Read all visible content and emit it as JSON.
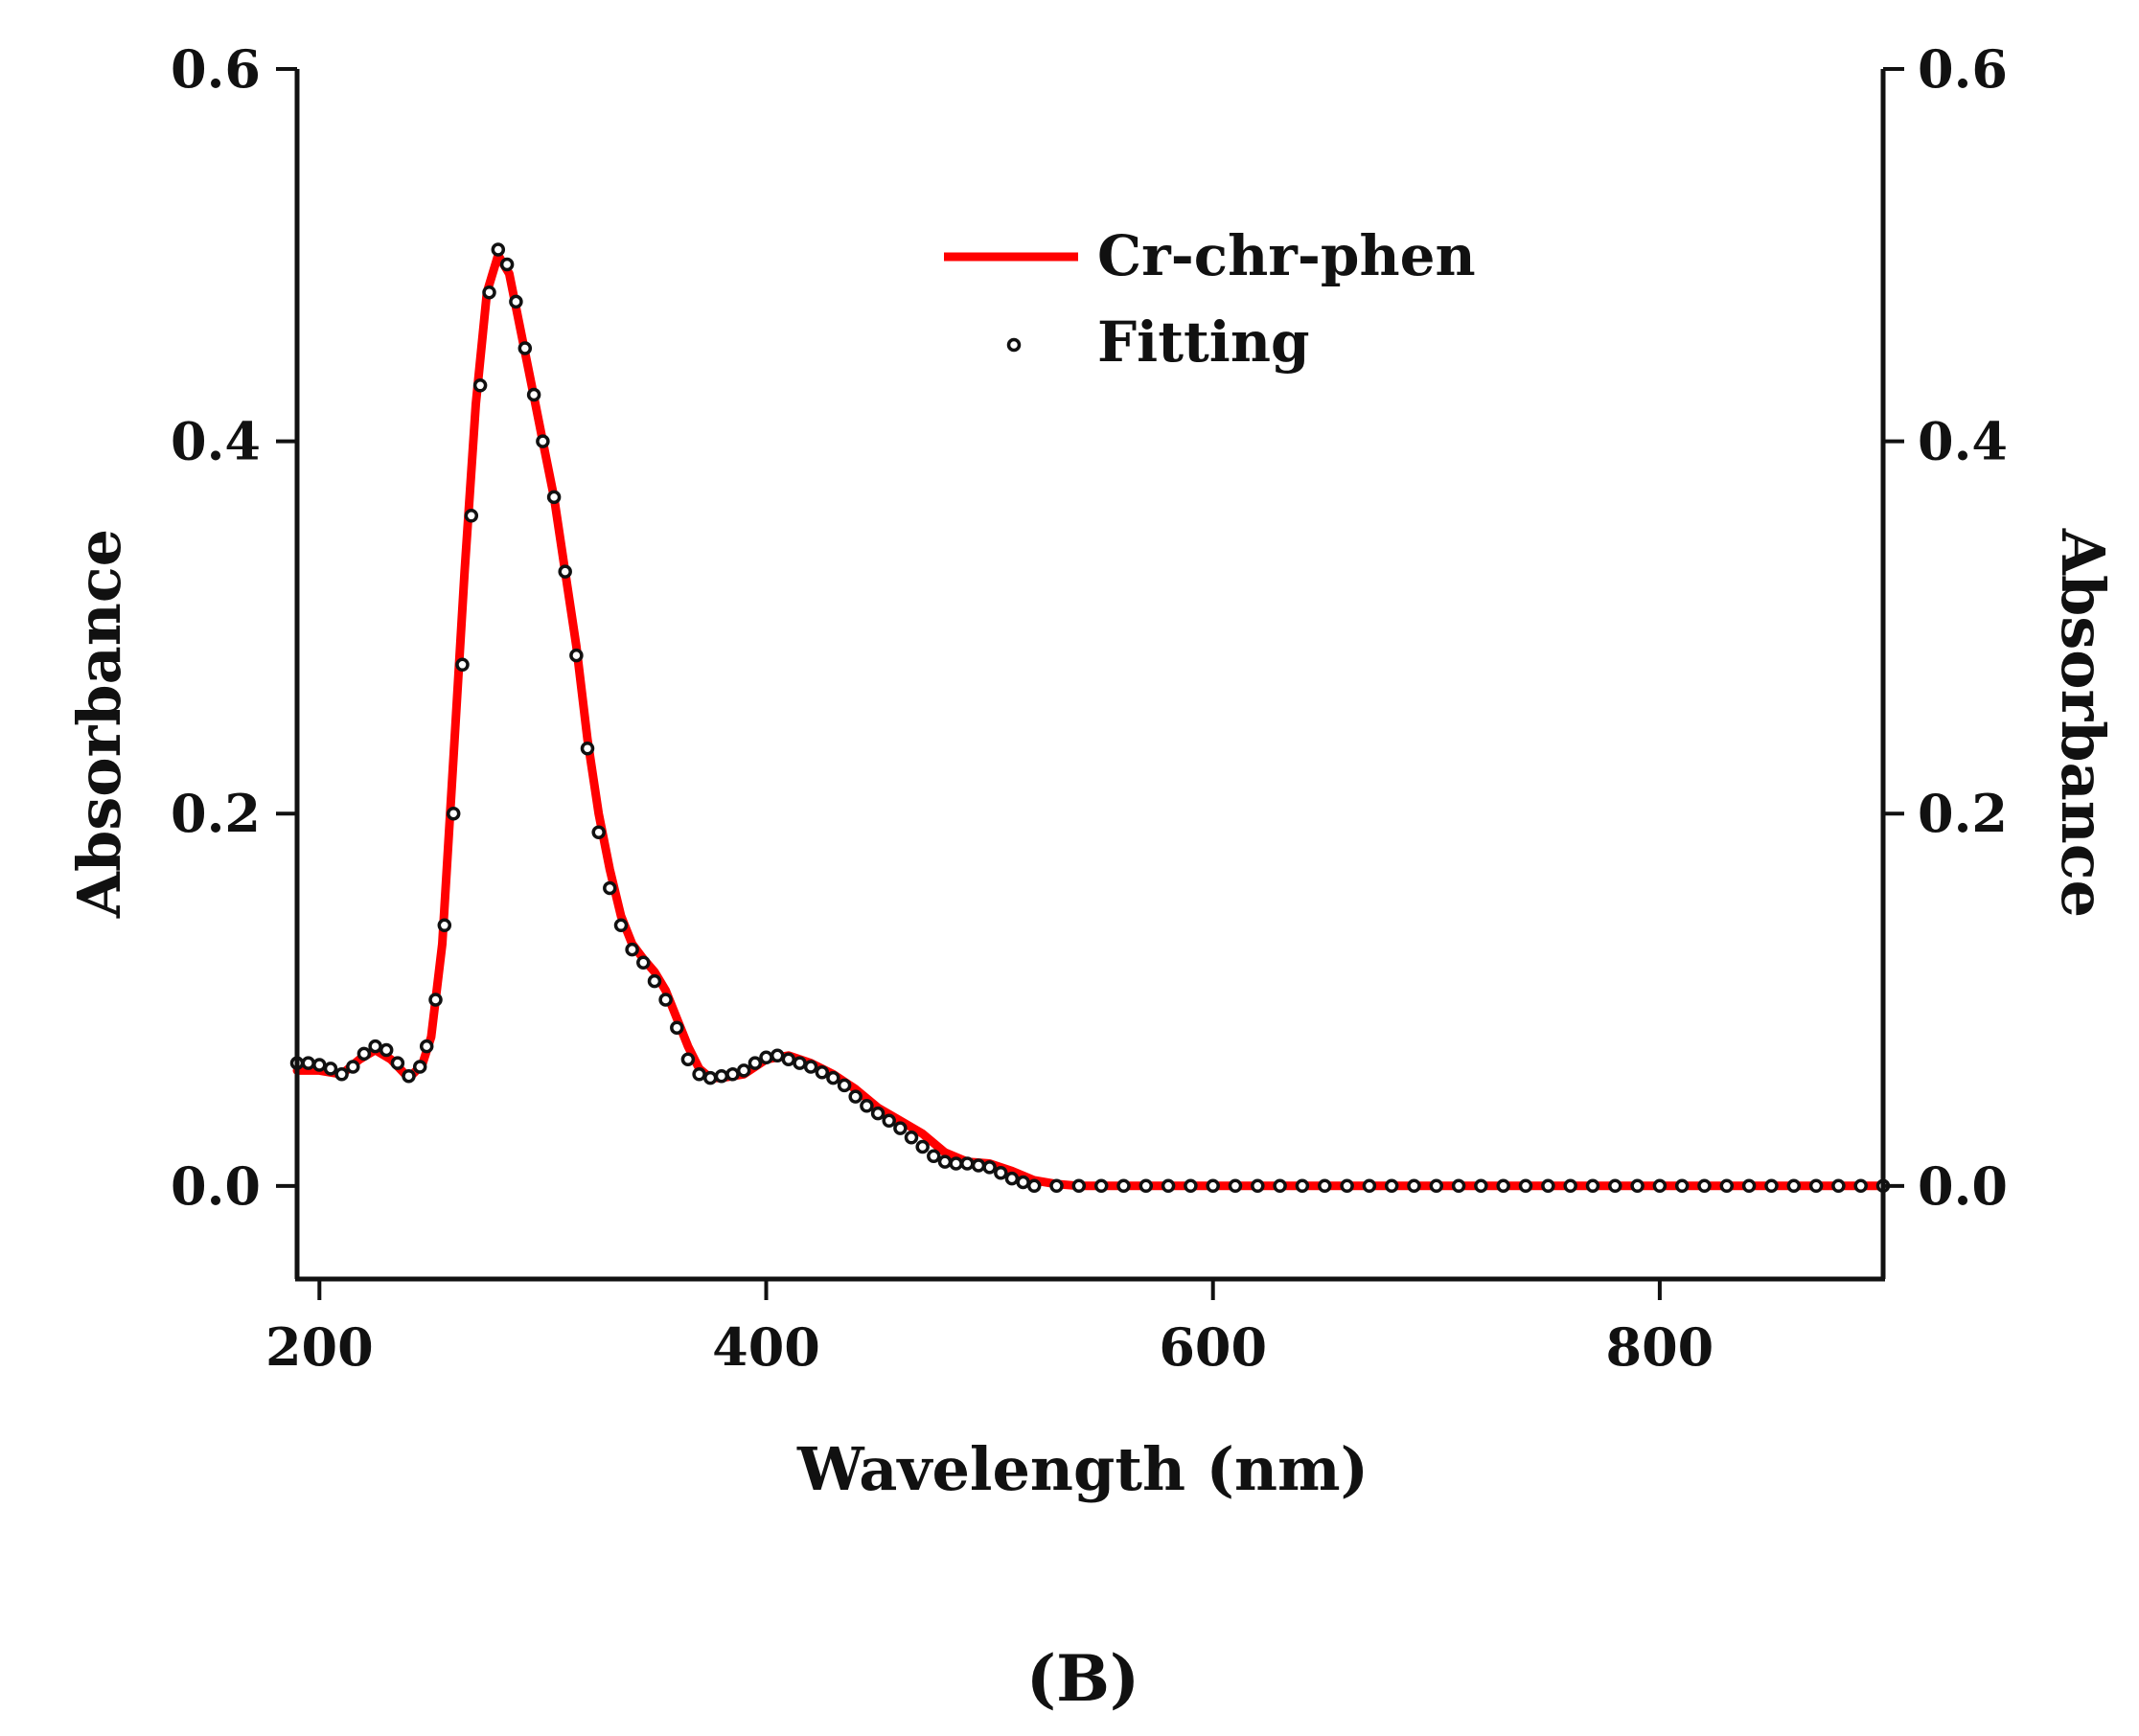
{
  "chart_data": {
    "type": "line",
    "title": "",
    "panel_label": "(B)",
    "xlabel": "Wavelength (nm)",
    "ylabel": "Absorbance",
    "ylabel_right": "Absorbance",
    "xlim": [
      190,
      900
    ],
    "ylim": [
      -0.05,
      0.6
    ],
    "x_ticks": [
      200,
      400,
      600,
      800
    ],
    "x_tick_labels": [
      "200",
      "400",
      "600",
      "800"
    ],
    "y_ticks": [
      0.0,
      0.2,
      0.4,
      0.6
    ],
    "y_tick_labels": [
      "0.0",
      "0.2",
      "0.4",
      "0.6"
    ],
    "grid": false,
    "legend_position": "top-center",
    "colors": {
      "line": "#ff0000",
      "marker": "#111111",
      "axis": "#111111"
    },
    "series": [
      {
        "name": "Cr-chr-phen",
        "style": "line",
        "points": [
          [
            190,
            0.062
          ],
          [
            200,
            0.062
          ],
          [
            210,
            0.06
          ],
          [
            218,
            0.068
          ],
          [
            225,
            0.073
          ],
          [
            232,
            0.068
          ],
          [
            240,
            0.058
          ],
          [
            246,
            0.065
          ],
          [
            250,
            0.08
          ],
          [
            255,
            0.13
          ],
          [
            260,
            0.23
          ],
          [
            265,
            0.33
          ],
          [
            270,
            0.42
          ],
          [
            275,
            0.48
          ],
          [
            280,
            0.5
          ],
          [
            285,
            0.49
          ],
          [
            290,
            0.46
          ],
          [
            295,
            0.43
          ],
          [
            300,
            0.4
          ],
          [
            305,
            0.37
          ],
          [
            310,
            0.33
          ],
          [
            315,
            0.29
          ],
          [
            320,
            0.24
          ],
          [
            325,
            0.2
          ],
          [
            330,
            0.17
          ],
          [
            335,
            0.145
          ],
          [
            340,
            0.13
          ],
          [
            345,
            0.122
          ],
          [
            350,
            0.115
          ],
          [
            355,
            0.105
          ],
          [
            360,
            0.09
          ],
          [
            365,
            0.075
          ],
          [
            370,
            0.063
          ],
          [
            375,
            0.058
          ],
          [
            380,
            0.058
          ],
          [
            390,
            0.06
          ],
          [
            400,
            0.068
          ],
          [
            410,
            0.07
          ],
          [
            420,
            0.066
          ],
          [
            430,
            0.06
          ],
          [
            440,
            0.052
          ],
          [
            450,
            0.042
          ],
          [
            460,
            0.035
          ],
          [
            470,
            0.028
          ],
          [
            480,
            0.018
          ],
          [
            490,
            0.013
          ],
          [
            500,
            0.012
          ],
          [
            510,
            0.008
          ],
          [
            520,
            0.003
          ],
          [
            530,
            0.001
          ],
          [
            540,
            0.0
          ],
          [
            600,
            0.0
          ],
          [
            700,
            0.0
          ],
          [
            800,
            0.0
          ],
          [
            900,
            0.0
          ]
        ]
      },
      {
        "name": "Fitting",
        "style": "markers",
        "marker": "open-circle",
        "points": [
          [
            190,
            0.066
          ],
          [
            195,
            0.066
          ],
          [
            200,
            0.065
          ],
          [
            205,
            0.063
          ],
          [
            210,
            0.06
          ],
          [
            215,
            0.064
          ],
          [
            220,
            0.071
          ],
          [
            225,
            0.075
          ],
          [
            230,
            0.073
          ],
          [
            235,
            0.066
          ],
          [
            240,
            0.059
          ],
          [
            245,
            0.064
          ],
          [
            248,
            0.075
          ],
          [
            252,
            0.1
          ],
          [
            256,
            0.14
          ],
          [
            260,
            0.2
          ],
          [
            264,
            0.28
          ],
          [
            268,
            0.36
          ],
          [
            272,
            0.43
          ],
          [
            276,
            0.48
          ],
          [
            280,
            0.503
          ],
          [
            284,
            0.495
          ],
          [
            288,
            0.475
          ],
          [
            292,
            0.45
          ],
          [
            296,
            0.425
          ],
          [
            300,
            0.4
          ],
          [
            305,
            0.37
          ],
          [
            310,
            0.33
          ],
          [
            315,
            0.285
          ],
          [
            320,
            0.235
          ],
          [
            325,
            0.19
          ],
          [
            330,
            0.16
          ],
          [
            335,
            0.14
          ],
          [
            340,
            0.127
          ],
          [
            345,
            0.12
          ],
          [
            350,
            0.11
          ],
          [
            355,
            0.1
          ],
          [
            360,
            0.085
          ],
          [
            365,
            0.068
          ],
          [
            370,
            0.06
          ],
          [
            375,
            0.058
          ],
          [
            380,
            0.059
          ],
          [
            385,
            0.06
          ],
          [
            390,
            0.062
          ],
          [
            395,
            0.066
          ],
          [
            400,
            0.069
          ],
          [
            405,
            0.07
          ],
          [
            410,
            0.068
          ],
          [
            415,
            0.066
          ],
          [
            420,
            0.064
          ],
          [
            425,
            0.061
          ],
          [
            430,
            0.058
          ],
          [
            435,
            0.054
          ],
          [
            440,
            0.048
          ],
          [
            445,
            0.043
          ],
          [
            450,
            0.039
          ],
          [
            455,
            0.035
          ],
          [
            460,
            0.031
          ],
          [
            465,
            0.026
          ],
          [
            470,
            0.021
          ],
          [
            475,
            0.016
          ],
          [
            480,
            0.013
          ],
          [
            485,
            0.012
          ],
          [
            490,
            0.012
          ],
          [
            495,
            0.011
          ],
          [
            500,
            0.01
          ],
          [
            505,
            0.007
          ],
          [
            510,
            0.004
          ],
          [
            515,
            0.002
          ],
          [
            520,
            0.0
          ],
          [
            530,
            0.0
          ],
          [
            540,
            0.0
          ],
          [
            550,
            0.0
          ],
          [
            560,
            0.0
          ],
          [
            570,
            0.0
          ],
          [
            580,
            0.0
          ],
          [
            590,
            0.0
          ],
          [
            600,
            0.0
          ],
          [
            610,
            0.0
          ],
          [
            620,
            0.0
          ],
          [
            630,
            0.0
          ],
          [
            640,
            0.0
          ],
          [
            650,
            0.0
          ],
          [
            660,
            0.0
          ],
          [
            670,
            0.0
          ],
          [
            680,
            0.0
          ],
          [
            690,
            0.0
          ],
          [
            700,
            0.0
          ],
          [
            710,
            0.0
          ],
          [
            720,
            0.0
          ],
          [
            730,
            0.0
          ],
          [
            740,
            0.0
          ],
          [
            750,
            0.0
          ],
          [
            760,
            0.0
          ],
          [
            770,
            0.0
          ],
          [
            780,
            0.0
          ],
          [
            790,
            0.0
          ],
          [
            800,
            0.0
          ],
          [
            810,
            0.0
          ],
          [
            820,
            0.0
          ],
          [
            830,
            0.0
          ],
          [
            840,
            0.0
          ],
          [
            850,
            0.0
          ],
          [
            860,
            0.0
          ],
          [
            870,
            0.0
          ],
          [
            880,
            0.0
          ],
          [
            890,
            0.0
          ],
          [
            900,
            0.0
          ]
        ]
      }
    ]
  }
}
